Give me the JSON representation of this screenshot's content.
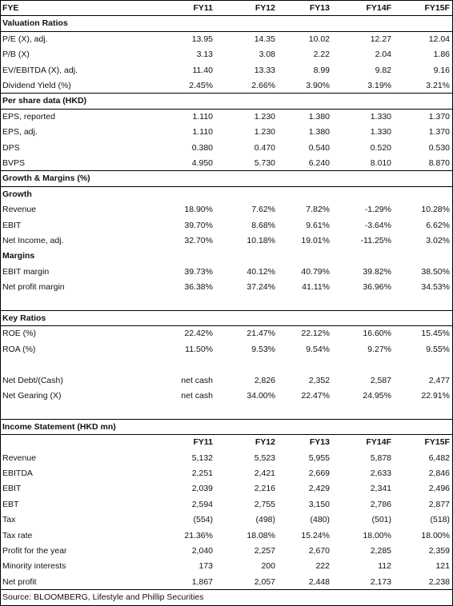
{
  "header": {
    "label": "FYE",
    "columns": [
      "FY11",
      "FY12",
      "FY13",
      "FY14F",
      "FY15F"
    ]
  },
  "sections": [
    {
      "title": "Valuation Ratios",
      "groups": [
        {
          "rows": [
            {
              "label": "P/E (X), adj.",
              "values": [
                "13.95",
                "14.35",
                "10.02",
                "12.27",
                "12.04"
              ]
            },
            {
              "label": "P/B (X)",
              "values": [
                "3.13",
                "3.08",
                "2.22",
                "2.04",
                "1.86"
              ]
            },
            {
              "label": "EV/EBITDA (X), adj.",
              "values": [
                "11.40",
                "13.33",
                "8.99",
                "9.82",
                "9.16"
              ]
            },
            {
              "label": "Dividend Yield (%)",
              "values": [
                "2.45%",
                "2.66%",
                "3.90%",
                "3.19%",
                "3.21%"
              ]
            }
          ]
        }
      ]
    },
    {
      "title": "Per share data (HKD)",
      "groups": [
        {
          "rows": [
            {
              "label": "EPS, reported",
              "values": [
                "1.110",
                "1.230",
                "1.380",
                "1.330",
                "1.370"
              ]
            },
            {
              "label": "EPS, adj.",
              "values": [
                "1.110",
                "1.230",
                "1.380",
                "1.330",
                "1.370"
              ]
            },
            {
              "label": "DPS",
              "values": [
                "0.380",
                "0.470",
                "0.540",
                "0.520",
                "0.530"
              ]
            },
            {
              "label": "BVPS",
              "values": [
                "4.950",
                "5.730",
                "6.240",
                "8.010",
                "8.870"
              ]
            }
          ]
        }
      ]
    },
    {
      "title": "Growth & Margins (%)",
      "groups": [
        {
          "title": "Growth",
          "rows": [
            {
              "label": "Revenue",
              "values": [
                "18.90%",
                "7.62%",
                "7.82%",
                "-1.29%",
                "10.28%"
              ]
            },
            {
              "label": "EBIT",
              "values": [
                "39.70%",
                "8.68%",
                "9.61%",
                "-3.64%",
                "6.62%"
              ]
            },
            {
              "label": "Net Income, adj.",
              "values": [
                "32.70%",
                "10.18%",
                "19.01%",
                "-11.25%",
                "3.02%"
              ]
            }
          ]
        },
        {
          "title": "Margins",
          "rows": [
            {
              "label": "EBIT margin",
              "values": [
                "39.73%",
                "40.12%",
                "40.79%",
                "39.82%",
                "38.50%"
              ]
            },
            {
              "label": "Net profit margin",
              "values": [
                "36.38%",
                "37.24%",
                "41.11%",
                "36.96%",
                "34.53%"
              ]
            }
          ]
        }
      ]
    },
    {
      "title": "Key Ratios",
      "groups": [
        {
          "rows": [
            {
              "label": "ROE (%)",
              "values": [
                "22.42%",
                "21.47%",
                "22.12%",
                "16.60%",
                "15.45%"
              ]
            },
            {
              "label": "ROA (%)",
              "values": [
                "11.50%",
                "9.53%",
                "9.54%",
                "9.27%",
                "9.55%"
              ]
            }
          ]
        },
        {
          "rows": [
            {
              "label": "Net Debt/(Cash)",
              "values": [
                "net cash",
                "2,826",
                "2,352",
                "2,587",
                "2,477"
              ]
            },
            {
              "label": "Net Gearing (X)",
              "values": [
                "net cash",
                "34.00%",
                "22.47%",
                "24.95%",
                "22.91%"
              ]
            }
          ]
        }
      ]
    },
    {
      "title": "Income Statement (HKD mn)",
      "columns": [
        "FY11",
        "FY12",
        "FY13",
        "FY14F",
        "FY15F"
      ],
      "groups": [
        {
          "rows": [
            {
              "label": "Revenue",
              "values": [
                "5,132",
                "5,523",
                "5,955",
                "5,878",
                "6,482"
              ]
            },
            {
              "label": "EBITDA",
              "values": [
                "2,251",
                "2,421",
                "2,669",
                "2,633",
                "2,846"
              ]
            },
            {
              "label": "EBIT",
              "values": [
                "2,039",
                "2,216",
                "2,429",
                "2,341",
                "2,496"
              ]
            },
            {
              "label": "EBT",
              "values": [
                "2,594",
                "2,755",
                "3,150",
                "2,786",
                "2,877"
              ]
            },
            {
              "label": "Tax",
              "values": [
                "(554)",
                "(498)",
                "(480)",
                "(501)",
                "(518)"
              ]
            },
            {
              "label": "Tax rate",
              "values": [
                "21.36%",
                "18.08%",
                "15.24%",
                "18.00%",
                "18.00%"
              ]
            },
            {
              "label": "Profit for the year",
              "values": [
                "2,040",
                "2,257",
                "2,670",
                "2,285",
                "2,359"
              ]
            },
            {
              "label": "Minority interests",
              "values": [
                "173",
                "200",
                "222",
                "112",
                "121"
              ]
            },
            {
              "label": "Net profit",
              "values": [
                "1,867",
                "2,057",
                "2,448",
                "2,173",
                "2,238"
              ]
            }
          ]
        }
      ]
    }
  ],
  "source": "Source: BLOOMBERG, Lifestyle and Phillip Securities"
}
